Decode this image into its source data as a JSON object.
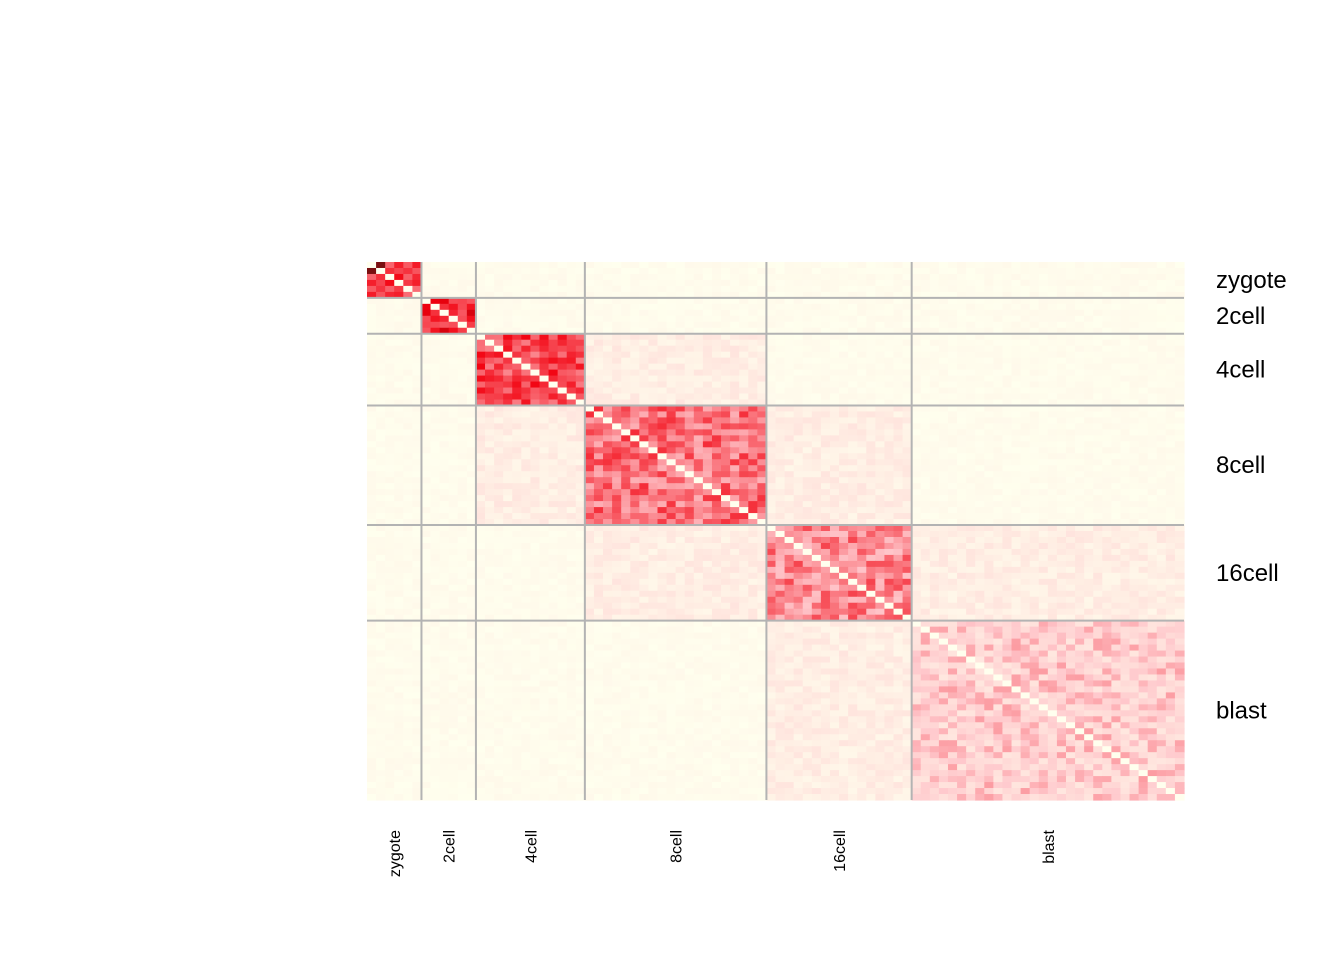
{
  "chart_data": {
    "type": "heatmap",
    "title": "",
    "xlabel": "",
    "ylabel": "",
    "groups": [
      "zygote",
      "2cell",
      "4cell",
      "8cell",
      "16cell",
      "blast"
    ],
    "row_labels": [
      "zygote",
      "2cell",
      "4cell",
      "8cell",
      "16cell",
      "blast"
    ],
    "column_labels": [
      "zygote",
      "2cell",
      "4cell",
      "8cell",
      "16cell",
      "blast"
    ],
    "row_group_sizes": [
      6,
      6,
      12,
      20,
      16,
      30
    ],
    "column_group_sizes": [
      6,
      6,
      12,
      20,
      16,
      30
    ],
    "cell_block_note_values": {
      "within_group_intensity": [
        0.7,
        0.75,
        0.65,
        0.55,
        0.5,
        0.3
      ],
      "between_group_intensity": 0.05
    },
    "colors": {
      "low": "#FFFFEE",
      "mid": "#FFC8CC",
      "high": "#F2000E",
      "max": "#7A0F10",
      "grid": "#b3b3b3"
    }
  }
}
